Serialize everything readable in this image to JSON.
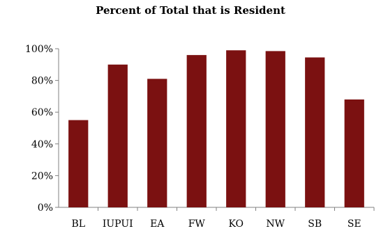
{
  "chart_data": {
    "type": "bar",
    "title": "Percent of Total that is Resident",
    "xlabel": "",
    "ylabel": "",
    "categories": [
      "BL",
      "IUPUI",
      "EA",
      "FW",
      "KO",
      "NW",
      "SB",
      "SE"
    ],
    "values": [
      55,
      90,
      81,
      96,
      99,
      98.5,
      94.5,
      68
    ],
    "ylim": [
      0,
      100
    ],
    "yticks": [
      0,
      20,
      40,
      60,
      80,
      100
    ],
    "ytick_labels": [
      "0%",
      "20%",
      "40%",
      "60%",
      "80%",
      "100%"
    ],
    "grid": false,
    "legend": "none",
    "bar_color": "#7b1111"
  }
}
